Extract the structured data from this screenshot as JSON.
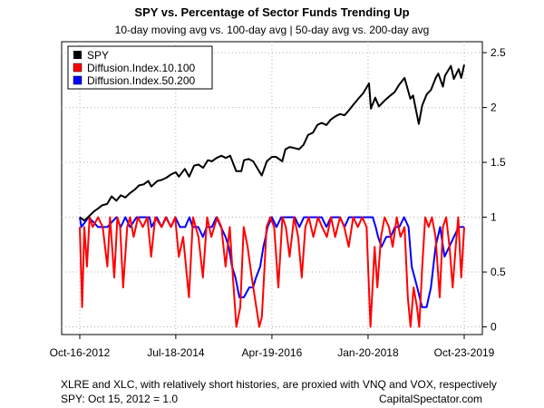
{
  "chart_data": {
    "type": "line",
    "title": "SPY vs. Percentage of Sector Funds Trending Up",
    "subtitle": "10-day moving avg vs. 100-day avg | 50-day avg vs. 200-day avg",
    "xlabel": "",
    "ylabel": "",
    "x_range": [
      "2012-10-16",
      "2019-10-23"
    ],
    "ylim": [
      -0.07,
      2.6
    ],
    "y_ticks": [
      "0",
      "0.5",
      "1",
      "1.5",
      "2",
      "2.5"
    ],
    "x_ticks": [
      "Oct-16-2012",
      "Jul-18-2014",
      "Apr-19-2016",
      "Jan-20-2018",
      "Oct-23-2019"
    ],
    "grid": true,
    "legend_position": "top-left",
    "legend": [
      "SPY",
      "Diffusion.Index.10.100",
      "Diffusion.Index.50.200"
    ],
    "footnotes": {
      "left": "XLRE and XLC, with relatively short histories, are proxied with VNQ and VOX, respectively",
      "spy_note": "SPY: Oct 15, 2012 = 1.0",
      "source": "CapitalSpectator.com"
    },
    "series": [
      {
        "name": "SPY",
        "color": "#000000",
        "x": [
          "2012-10-16",
          "2012-11-15",
          "2012-12-17",
          "2013-01-16",
          "2013-02-15",
          "2013-03-15",
          "2013-04-16",
          "2013-05-16",
          "2013-06-17",
          "2013-07-16",
          "2013-08-16",
          "2013-09-16",
          "2013-10-16",
          "2013-11-15",
          "2013-12-16",
          "2014-01-16",
          "2014-02-05",
          "2014-03-17",
          "2014-04-16",
          "2014-05-16",
          "2014-06-16",
          "2014-07-18",
          "2014-08-08",
          "2014-09-16",
          "2014-10-15",
          "2014-11-17",
          "2014-12-16",
          "2015-01-16",
          "2015-02-17",
          "2015-03-16",
          "2015-04-16",
          "2015-05-18",
          "2015-06-16",
          "2015-07-16",
          "2015-08-25",
          "2015-09-28",
          "2015-10-16",
          "2015-11-16",
          "2015-12-16",
          "2016-01-20",
          "2016-02-11",
          "2016-03-16",
          "2016-04-19",
          "2016-05-16",
          "2016-06-27",
          "2016-07-18",
          "2016-08-16",
          "2016-09-16",
          "2016-10-17",
          "2016-11-16",
          "2016-12-16",
          "2017-01-17",
          "2017-02-16",
          "2017-03-16",
          "2017-04-18",
          "2017-05-16",
          "2017-06-16",
          "2017-07-17",
          "2017-08-16",
          "2017-09-18",
          "2017-10-16",
          "2017-11-16",
          "2017-12-18",
          "2018-01-26",
          "2018-02-08",
          "2018-03-09",
          "2018-04-02",
          "2018-05-16",
          "2018-06-18",
          "2018-07-16",
          "2018-08-16",
          "2018-09-20",
          "2018-10-29",
          "2018-11-16",
          "2018-12-24",
          "2019-01-16",
          "2019-02-15",
          "2019-03-15",
          "2019-04-16",
          "2019-05-03",
          "2019-06-03",
          "2019-06-17",
          "2019-07-26",
          "2019-08-15",
          "2019-09-16",
          "2019-10-03",
          "2019-10-23"
        ],
        "values": [
          1.0,
          0.97,
          1.01,
          1.05,
          1.08,
          1.11,
          1.12,
          1.19,
          1.15,
          1.2,
          1.18,
          1.22,
          1.25,
          1.29,
          1.3,
          1.33,
          1.28,
          1.33,
          1.34,
          1.36,
          1.39,
          1.41,
          1.37,
          1.44,
          1.37,
          1.47,
          1.48,
          1.45,
          1.52,
          1.51,
          1.54,
          1.56,
          1.54,
          1.56,
          1.42,
          1.42,
          1.52,
          1.53,
          1.51,
          1.43,
          1.38,
          1.51,
          1.55,
          1.55,
          1.51,
          1.62,
          1.64,
          1.63,
          1.62,
          1.66,
          1.75,
          1.77,
          1.84,
          1.86,
          1.84,
          1.89,
          1.92,
          1.94,
          1.93,
          1.98,
          2.03,
          2.08,
          2.13,
          2.22,
          1.99,
          2.09,
          2.01,
          2.07,
          2.11,
          2.14,
          2.21,
          2.27,
          2.08,
          2.11,
          1.85,
          2.02,
          2.12,
          2.16,
          2.27,
          2.31,
          2.19,
          2.29,
          2.38,
          2.26,
          2.35,
          2.27,
          2.39
        ]
      },
      {
        "name": "Diffusion.Index.10.100",
        "color": "#ff0000",
        "x": [
          "2012-10-16",
          "2012-11-01",
          "2012-11-15",
          "2012-12-03",
          "2012-12-20",
          "2013-01-10",
          "2013-02-15",
          "2013-03-18",
          "2013-04-18",
          "2013-05-06",
          "2013-06-03",
          "2013-06-24",
          "2013-07-12",
          "2013-08-01",
          "2013-08-28",
          "2013-09-16",
          "2013-10-10",
          "2013-11-08",
          "2013-12-10",
          "2014-01-10",
          "2014-02-04",
          "2014-03-03",
          "2014-04-14",
          "2014-05-12",
          "2014-06-16",
          "2014-07-14",
          "2014-08-07",
          "2014-09-05",
          "2014-10-14",
          "2014-11-10",
          "2014-12-16",
          "2015-01-15",
          "2015-02-12",
          "2015-03-12",
          "2015-04-20",
          "2015-05-18",
          "2015-06-15",
          "2015-07-13",
          "2015-08-03",
          "2015-08-26",
          "2015-09-21",
          "2015-10-14",
          "2015-11-09",
          "2015-12-07",
          "2016-01-06",
          "2016-01-26",
          "2016-02-12",
          "2016-03-01",
          "2016-03-14",
          "2016-04-08",
          "2016-05-04",
          "2016-06-01",
          "2016-06-28",
          "2016-07-21",
          "2016-08-15",
          "2016-09-14",
          "2016-10-11",
          "2016-11-04",
          "2016-11-28",
          "2016-12-21",
          "2017-01-20",
          "2017-02-20",
          "2017-03-20",
          "2017-04-20",
          "2017-05-18",
          "2017-06-15",
          "2017-07-17",
          "2017-08-14",
          "2017-09-13",
          "2017-10-13",
          "2017-11-13",
          "2017-12-12",
          "2018-01-10",
          "2018-02-05",
          "2018-02-15",
          "2018-03-05",
          "2018-03-23",
          "2018-04-16",
          "2018-05-10",
          "2018-06-08",
          "2018-07-03",
          "2018-07-30",
          "2018-08-24",
          "2018-09-20",
          "2018-10-12",
          "2018-10-30",
          "2018-11-20",
          "2018-12-12",
          "2018-12-27",
          "2019-01-16",
          "2019-02-05",
          "2019-02-28",
          "2019-03-22",
          "2019-04-15",
          "2019-05-13",
          "2019-06-03",
          "2019-06-25",
          "2019-07-17",
          "2019-08-07",
          "2019-08-27",
          "2019-09-13",
          "2019-10-03",
          "2019-10-23"
        ],
        "values": [
          0.91,
          0.18,
          0.91,
          0.55,
          1.0,
          0.91,
          1.0,
          0.91,
          0.55,
          1.0,
          0.45,
          1.0,
          0.91,
          0.36,
          0.91,
          1.0,
          0.82,
          1.0,
          0.91,
          1.0,
          0.64,
          1.0,
          0.91,
          1.0,
          0.91,
          1.0,
          0.64,
          0.82,
          0.27,
          1.0,
          0.82,
          0.45,
          1.0,
          0.82,
          1.0,
          0.91,
          0.55,
          0.91,
          0.45,
          0.0,
          0.18,
          0.91,
          0.73,
          0.45,
          0.18,
          0.0,
          0.09,
          0.55,
          0.91,
          1.0,
          0.91,
          0.36,
          1.0,
          0.91,
          0.64,
          1.0,
          0.82,
          0.45,
          0.91,
          1.0,
          0.82,
          1.0,
          0.91,
          0.82,
          1.0,
          0.82,
          1.0,
          0.91,
          0.73,
          1.0,
          0.91,
          1.0,
          0.91,
          0.0,
          0.27,
          0.73,
          0.36,
          0.82,
          1.0,
          0.91,
          0.73,
          1.0,
          0.82,
          0.91,
          0.27,
          0.0,
          0.36,
          0.18,
          0.0,
          0.55,
          1.0,
          0.91,
          1.0,
          0.82,
          0.27,
          0.91,
          1.0,
          0.73,
          0.36,
          0.73,
          1.0,
          0.45,
          0.91
        ]
      },
      {
        "name": "Diffusion.Index.50.200",
        "color": "#0000ff",
        "x": [
          "2012-10-16",
          "2012-10-26",
          "2012-12-14",
          "2013-02-15",
          "2013-04-18",
          "2013-06-17",
          "2013-07-16",
          "2013-08-16",
          "2013-09-16",
          "2013-10-30",
          "2014-01-24",
          "2014-02-06",
          "2014-03-14",
          "2014-04-15",
          "2014-05-15",
          "2014-06-16",
          "2014-07-15",
          "2014-08-15",
          "2014-09-19",
          "2014-10-17",
          "2014-11-07",
          "2014-12-15",
          "2015-01-15",
          "2015-02-09",
          "2015-03-16",
          "2015-04-15",
          "2015-05-15",
          "2015-06-15",
          "2015-07-06",
          "2015-07-28",
          "2015-08-20",
          "2015-09-15",
          "2015-10-15",
          "2015-11-20",
          "2015-12-15",
          "2016-01-04",
          "2016-02-01",
          "2016-02-22",
          "2016-03-08",
          "2016-03-21",
          "2016-04-19",
          "2016-05-20",
          "2016-06-20",
          "2016-07-20",
          "2016-08-19",
          "2016-09-19",
          "2016-10-19",
          "2016-11-18",
          "2016-12-16",
          "2017-01-17",
          "2017-02-16",
          "2017-03-17",
          "2017-04-18",
          "2017-05-17",
          "2017-06-16",
          "2017-07-17",
          "2017-08-16",
          "2017-09-15",
          "2017-10-16",
          "2017-11-15",
          "2017-12-15",
          "2018-01-16",
          "2018-02-20",
          "2018-03-12",
          "2018-03-28",
          "2018-04-20",
          "2018-05-21",
          "2018-06-20",
          "2018-07-18",
          "2018-08-16",
          "2018-09-17",
          "2018-10-17",
          "2018-11-07",
          "2018-12-14",
          "2019-01-15",
          "2019-02-14",
          "2019-03-15",
          "2019-04-15",
          "2019-05-15",
          "2019-06-14",
          "2019-07-15",
          "2019-08-15",
          "2019-09-16",
          "2019-10-23"
        ],
        "values": [
          1.0,
          0.91,
          1.0,
          0.91,
          0.91,
          1.0,
          0.91,
          1.0,
          0.91,
          1.0,
          1.0,
          0.91,
          1.0,
          0.91,
          1.0,
          0.91,
          1.0,
          0.91,
          0.91,
          1.0,
          0.91,
          0.91,
          0.82,
          0.91,
          0.91,
          1.0,
          0.91,
          0.82,
          0.73,
          0.55,
          0.45,
          0.27,
          0.27,
          0.36,
          0.36,
          0.45,
          0.55,
          0.73,
          0.82,
          0.91,
          1.0,
          0.91,
          1.0,
          1.0,
          1.0,
          1.0,
          0.91,
          1.0,
          1.0,
          1.0,
          1.0,
          1.0,
          0.91,
          1.0,
          1.0,
          1.0,
          0.91,
          1.0,
          1.0,
          1.0,
          1.0,
          1.0,
          1.0,
          0.91,
          0.82,
          0.73,
          0.82,
          0.82,
          0.91,
          0.91,
          1.0,
          0.91,
          0.55,
          0.36,
          0.18,
          0.18,
          0.36,
          0.73,
          0.91,
          0.64,
          0.73,
          0.82,
          0.91,
          0.91
        ]
      }
    ]
  }
}
